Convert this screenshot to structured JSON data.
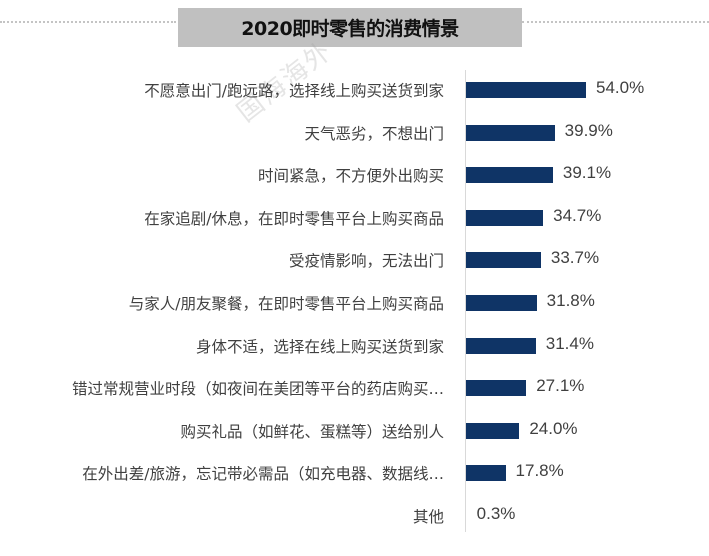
{
  "title": "2020即时零售的消费情景",
  "watermark": "国海海外",
  "colors": {
    "bar": "#0f3466",
    "title_bg": "#c0c0c0",
    "text": "#404040"
  },
  "chart_data": {
    "type": "bar",
    "orientation": "horizontal",
    "title": "2020即时零售的消费情景",
    "xlabel": "",
    "ylabel": "",
    "categories": [
      "不愿意出门/跑远路，选择线上购买送货到家",
      "天气恶劣，不想出门",
      "时间紧急，不方便外出购买",
      "在家追剧/休息，在即时零售平台上购买商品",
      "受疫情影响，无法出门",
      "与家人/朋友聚餐，在即时零售平台上购买商品",
      "身体不适，选择在线上购买送货到家",
      "错过常规营业时段（如夜间在美团等平台的药店购买…",
      "购买礼品（如鲜花、蛋糕等）送给别人",
      "在外出差/旅游，忘记带必需品（如充电器、数据线…",
      "其他"
    ],
    "values": [
      54.0,
      39.9,
      39.1,
      34.7,
      33.7,
      31.8,
      31.4,
      27.1,
      24.0,
      17.8,
      0.3
    ],
    "value_labels": [
      "54.0%",
      "39.9%",
      "39.1%",
      "34.7%",
      "33.7%",
      "31.8%",
      "31.4%",
      "27.1%",
      "24.0%",
      "17.8%",
      "0.3%"
    ],
    "unit": "%",
    "xlim": [
      0,
      60
    ],
    "grid": false,
    "legend": "none"
  }
}
